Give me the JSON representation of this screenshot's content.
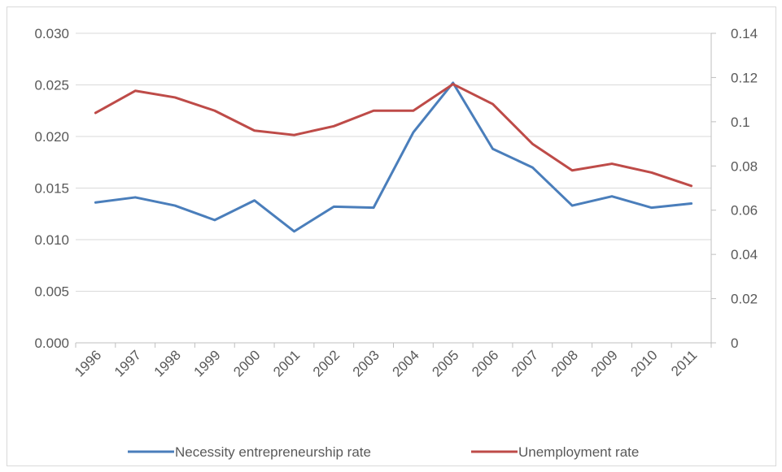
{
  "chart_data": {
    "type": "line",
    "categories": [
      "1996",
      "1997",
      "1998",
      "1999",
      "2000",
      "2001",
      "2002",
      "2003",
      "2004",
      "2005",
      "2006",
      "2007",
      "2008",
      "2009",
      "2010",
      "2011"
    ],
    "series": [
      {
        "name": "Necessity entrepreneurship rate",
        "axis": "left",
        "color": "#4a7ebb",
        "values": [
          0.0136,
          0.0141,
          0.0133,
          0.0119,
          0.0138,
          0.0108,
          0.0132,
          0.0131,
          0.0204,
          0.0252,
          0.0188,
          0.017,
          0.0133,
          0.0142,
          0.0131,
          0.0135
        ]
      },
      {
        "name": "Unemployment rate",
        "axis": "right",
        "color": "#be4b48",
        "values": [
          0.104,
          0.114,
          0.111,
          0.105,
          0.096,
          0.094,
          0.098,
          0.105,
          0.105,
          0.117,
          0.108,
          0.09,
          0.078,
          0.081,
          0.077,
          0.071
        ]
      }
    ],
    "y_left": {
      "range": [
        0,
        0.03
      ],
      "ticks": [
        0.0,
        0.005,
        0.01,
        0.015,
        0.02,
        0.025,
        0.03
      ],
      "tick_labels": [
        "0.000",
        "0.005",
        "0.010",
        "0.015",
        "0.020",
        "0.025",
        "0.030"
      ]
    },
    "y_right": {
      "range": [
        0,
        0.14
      ],
      "ticks": [
        0,
        0.02,
        0.04,
        0.06,
        0.08,
        0.1,
        0.12,
        0.14
      ],
      "tick_labels": [
        "0",
        "0.02",
        "0.04",
        "0.06",
        "0.08",
        "0.1",
        "0.12",
        "0.14"
      ]
    },
    "title": "",
    "xlabel": "",
    "ylabel": "",
    "grid": "horizontal",
    "legend_position": "bottom"
  },
  "style": {
    "gridline_color": "#d9d9d9",
    "axis_color": "#bfbfbf",
    "text_color": "#595959"
  }
}
